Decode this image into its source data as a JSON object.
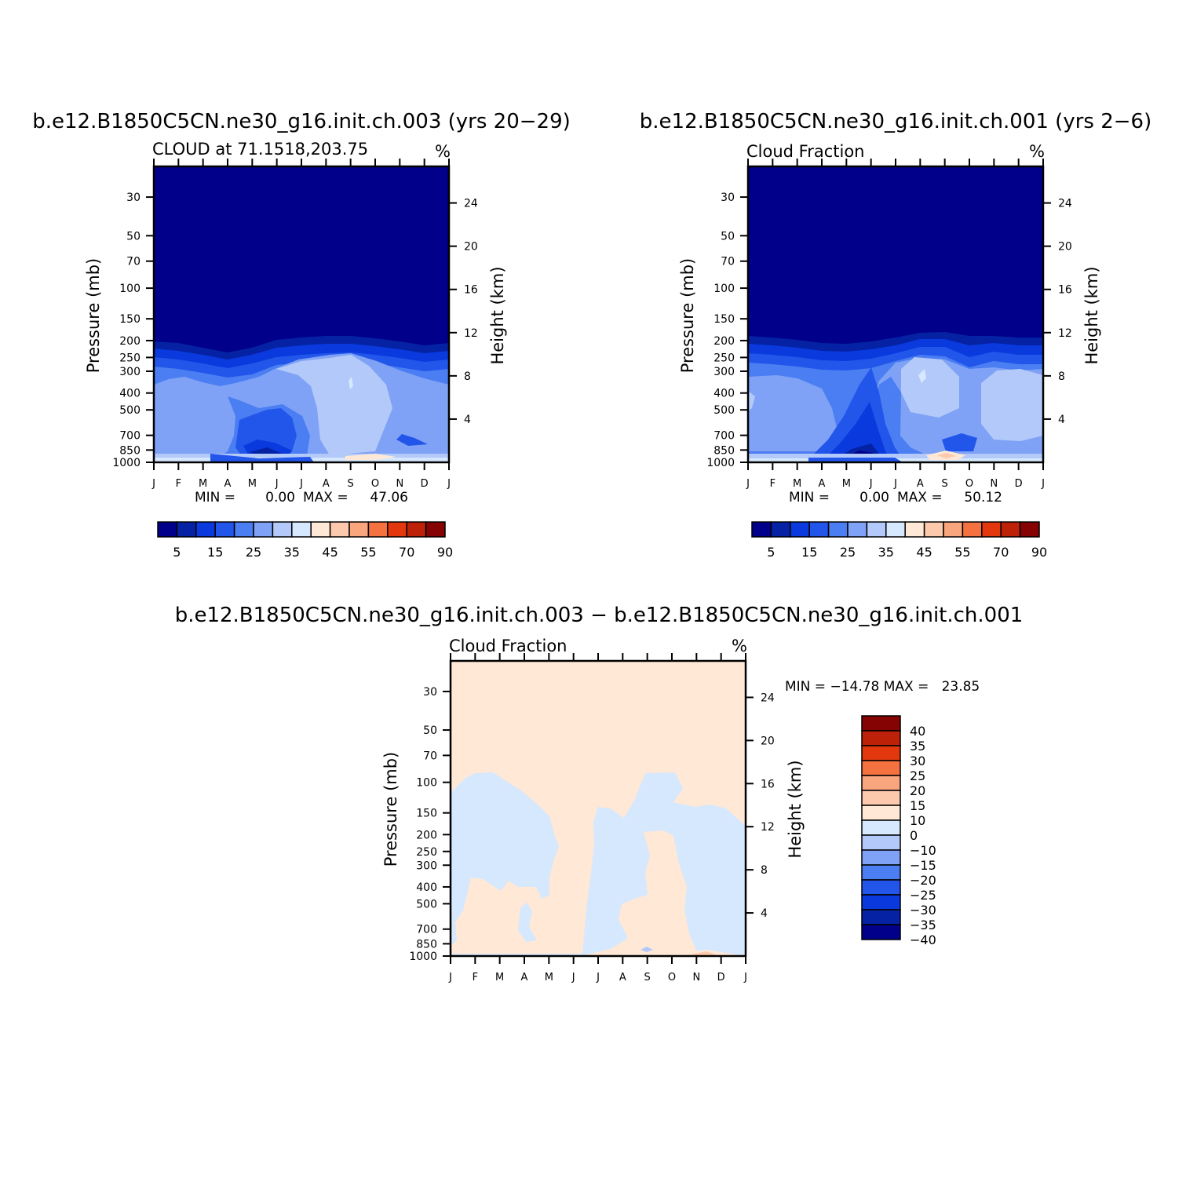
{
  "colors": {
    "abs_palette": [
      "#00008a",
      "#0522a5",
      "#0a39dd",
      "#2255ea",
      "#4a7ef2",
      "#7fa2f6",
      "#b2c9fa",
      "#d6e8fd",
      "#ffe8d6",
      "#fdc9ac",
      "#f9a57e",
      "#f5713f",
      "#e3380d",
      "#bd2208",
      "#860304"
    ],
    "diff_palette": [
      "#00008a",
      "#0522a5",
      "#0a39dd",
      "#2255ea",
      "#4a7ef2",
      "#7fa2f6",
      "#b2c9fa",
      "#d6e8fd",
      "#ffe8d6",
      "#fdc9ac",
      "#f9a57e",
      "#f5713f",
      "#e3380d",
      "#bd2208",
      "#860304"
    ]
  },
  "chart_data": [
    {
      "type": "heatmap",
      "title": "b.e12.B1850C5CN.ne30_g16.init.ch.003 (yrs 20−29)",
      "subtitle_left": "CLOUD at 71.1518,203.75",
      "subtitle_right": "%",
      "ylabel_left": "Pressure (mb)",
      "ylabel_right": "Height (km)",
      "x_ticks": [
        "J",
        "F",
        "M",
        "A",
        "M",
        "J",
        "J",
        "A",
        "S",
        "O",
        "N",
        "D",
        "J"
      ],
      "y_ticks_pressure": [
        "30",
        "50",
        "70",
        "100",
        "150",
        "200",
        "250",
        "300",
        "400",
        "500",
        "700",
        "850",
        "1000"
      ],
      "y_ticks_height": [
        "24",
        "20",
        "16",
        "12",
        "8",
        "4"
      ],
      "ylim_pressure": [
        1000,
        20
      ],
      "stats": {
        "min_label": "MIN =",
        "min": "0.00",
        "max_label": "MAX =",
        "max": "47.06"
      },
      "colorbar_labels": [
        "5",
        "15",
        "25",
        "35",
        "45",
        "55",
        "70",
        "90"
      ],
      "tropopause_pressure_by_month": [
        225,
        235,
        245,
        270,
        240,
        210,
        205,
        200,
        200,
        205,
        210,
        230,
        225
      ],
      "cloud_layer_summary": {
        "upper_max": 10,
        "mid_max": 35,
        "surface_max": 47.06
      }
    },
    {
      "type": "heatmap",
      "title": "b.e12.B1850C5CN.ne30_g16.init.ch.001 (yrs 2−6)",
      "subtitle_left": "Cloud Fraction",
      "subtitle_right": "%",
      "ylabel_left": "Pressure (mb)",
      "ylabel_right": "Height (km)",
      "x_ticks": [
        "J",
        "F",
        "M",
        "A",
        "M",
        "J",
        "J",
        "A",
        "S",
        "O",
        "N",
        "D",
        "J"
      ],
      "y_ticks_pressure": [
        "30",
        "50",
        "70",
        "100",
        "150",
        "200",
        "250",
        "300",
        "400",
        "500",
        "700",
        "850",
        "1000"
      ],
      "y_ticks_height": [
        "24",
        "20",
        "16",
        "12",
        "8",
        "4"
      ],
      "ylim_pressure": [
        1000,
        20
      ],
      "stats": {
        "min_label": "MIN =",
        "min": "0.00",
        "max_label": "MAX =",
        "max": "50.12"
      },
      "colorbar_labels": [
        "5",
        "15",
        "25",
        "35",
        "45",
        "55",
        "70",
        "90"
      ],
      "tropopause_pressure_by_month": [
        210,
        215,
        225,
        235,
        240,
        225,
        210,
        195,
        190,
        215,
        200,
        205,
        210
      ],
      "cloud_layer_summary": {
        "upper_max": 10,
        "mid_max": 35,
        "surface_max": 50.12
      }
    },
    {
      "type": "heatmap",
      "title": "b.e12.B1850C5CN.ne30_g16.init.ch.003 − b.e12.B1850C5CN.ne30_g16.init.ch.001",
      "subtitle_left": "Cloud Fraction",
      "subtitle_right": "%",
      "ylabel_left": "Pressure (mb)",
      "ylabel_right": "Height (km)",
      "x_ticks": [
        "J",
        "F",
        "M",
        "A",
        "M",
        "J",
        "J",
        "A",
        "S",
        "O",
        "N",
        "D",
        "J"
      ],
      "y_ticks_pressure": [
        "30",
        "50",
        "70",
        "100",
        "150",
        "200",
        "250",
        "300",
        "400",
        "500",
        "700",
        "850",
        "1000"
      ],
      "y_ticks_height": [
        "24",
        "20",
        "16",
        "12",
        "8",
        "4"
      ],
      "ylim_pressure": [
        1000,
        20
      ],
      "stats": {
        "text": "MIN = −14.78 MAX =   23.85"
      },
      "colorbar_labels": [
        "40",
        "35",
        "30",
        "25",
        "20",
        "15",
        "10",
        "0",
        "−10",
        "−15",
        "−20",
        "−25",
        "−30",
        "−35",
        "−40"
      ],
      "dominant_sign_note_free": true
    }
  ]
}
